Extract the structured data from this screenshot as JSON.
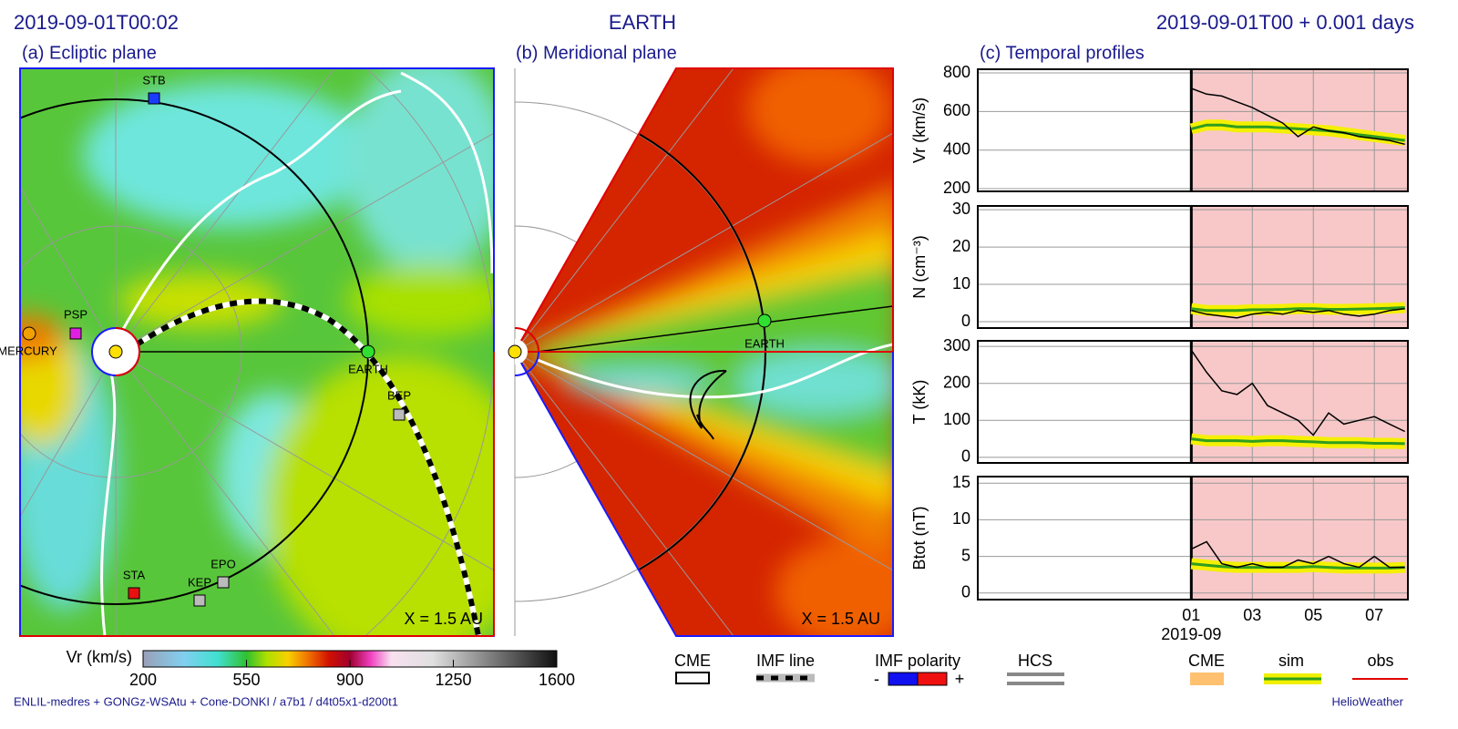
{
  "header": {
    "left": "2019-09-01T00:02",
    "center": "EARTH",
    "right": "2019-09-01T00 +  0.001 days"
  },
  "panels": {
    "a": {
      "title": "(a) Ecliptic plane",
      "scale_label": "X = 1.5 AU",
      "bodies": [
        "STB",
        "PSP",
        "MERCURY",
        "EARTH",
        "BEP",
        "STA",
        "KEP",
        "EPO"
      ]
    },
    "b": {
      "title": "(b) Meridional plane",
      "scale_label": "X = 1.5 AU",
      "bodies": [
        "EARTH"
      ]
    },
    "c": {
      "title": "(c) Temporal profiles"
    }
  },
  "colorbar": {
    "label": "Vr (km/s)",
    "lim": [
      200,
      1600
    ],
    "ticks": [
      200,
      550,
      900,
      1250,
      1600
    ]
  },
  "legend": {
    "items": [
      "CME",
      "IMF line",
      "IMF polarity",
      "HCS",
      "CME",
      "sim",
      "obs"
    ],
    "polarity_signs": [
      "-",
      "+"
    ]
  },
  "footer": {
    "left": "ENLIL-medres + GONGz-WSAtu + Cone-DONKI / a7b1 / d4t05x1-d200t1",
    "right": "HelioWeather"
  },
  "chart_data": [
    {
      "type": "line",
      "ylabel": "Vr (km/s)",
      "xlim": [
        -6,
        8.1
      ],
      "xticks": [
        1,
        3,
        5,
        7
      ],
      "observed_from": 1,
      "ylim": [
        186,
        819
      ],
      "yticks": [
        200,
        400,
        600,
        800
      ],
      "x": [
        1,
        1.5,
        2,
        2.5,
        3,
        3.5,
        4,
        4.5,
        5,
        5.5,
        6,
        6.5,
        7,
        7.5,
        8
      ],
      "series": [
        {
          "name": "sim",
          "color": "#2e9e1e",
          "values": [
            510,
            530,
            530,
            520,
            520,
            520,
            515,
            510,
            505,
            500,
            490,
            480,
            470,
            460,
            450
          ]
        },
        {
          "name": "obs",
          "color": "#000000",
          "values": [
            720,
            690,
            680,
            650,
            620,
            580,
            540,
            470,
            520,
            500,
            490,
            470,
            460,
            450,
            430
          ]
        }
      ]
    },
    {
      "type": "line",
      "ylabel": "N (cm⁻³)",
      "xlim": [
        -6,
        8.1
      ],
      "xticks": [
        1,
        3,
        5,
        7
      ],
      "observed_from": 1,
      "ylim": [
        -1.7,
        31
      ],
      "yticks": [
        0,
        10,
        20,
        30
      ],
      "x": [
        1,
        1.5,
        2,
        2.5,
        3,
        3.5,
        4,
        4.5,
        5,
        5.5,
        6,
        6.5,
        7,
        7.5,
        8
      ],
      "series": [
        {
          "name": "sim",
          "color": "#2e9e1e",
          "values": [
            3.5,
            3,
            3,
            3,
            3.2,
            3.2,
            3.3,
            3.5,
            3.5,
            3.3,
            3.3,
            3.4,
            3.5,
            3.6,
            3.8
          ]
        },
        {
          "name": "obs",
          "color": "#000000",
          "values": [
            3,
            2,
            1.5,
            1,
            2,
            2.5,
            2,
            3,
            2.5,
            3,
            2,
            1.5,
            2,
            3,
            3.5
          ]
        }
      ]
    },
    {
      "type": "line",
      "ylabel": "T  (kK)",
      "xlim": [
        -6,
        8.1
      ],
      "xticks": [
        1,
        3,
        5,
        7
      ],
      "observed_from": 1,
      "ylim": [
        -15,
        315
      ],
      "yticks": [
        0,
        100,
        200,
        300
      ],
      "x": [
        1,
        1.5,
        2,
        2.5,
        3,
        3.5,
        4,
        4.5,
        5,
        5.5,
        6,
        6.5,
        7,
        7.5,
        8
      ],
      "series": [
        {
          "name": "sim",
          "color": "#2e9e1e",
          "values": [
            50,
            45,
            45,
            45,
            43,
            45,
            45,
            43,
            42,
            40,
            40,
            40,
            38,
            38,
            37
          ]
        },
        {
          "name": "obs",
          "color": "#000000",
          "values": [
            290,
            230,
            180,
            170,
            200,
            140,
            120,
            100,
            60,
            120,
            90,
            100,
            110,
            90,
            70
          ]
        }
      ]
    },
    {
      "type": "line",
      "ylabel": "Btot (nT)",
      "xlim": [
        -6,
        8.1
      ],
      "observed_from": 1,
      "xticks": [
        {
          "value": 1,
          "label": "01"
        },
        {
          "value": 3,
          "label": "03"
        },
        {
          "value": 5,
          "label": "05"
        },
        {
          "value": 7,
          "label": "07"
        }
      ],
      "xlabel": "2019-09",
      "ylim": [
        -0.9,
        15.9
      ],
      "yticks": [
        0,
        5,
        10,
        15
      ],
      "x": [
        1,
        1.5,
        2,
        2.5,
        3,
        3.5,
        4,
        4.5,
        5,
        5.5,
        6,
        6.5,
        7,
        7.5,
        8
      ],
      "series": [
        {
          "name": "sim",
          "color": "#2e9e1e",
          "values": [
            4,
            3.8,
            3.6,
            3.5,
            3.5,
            3.5,
            3.5,
            3.5,
            3.6,
            3.5,
            3.4,
            3.4,
            3.4,
            3.4,
            3.5
          ]
        },
        {
          "name": "obs",
          "color": "#000000",
          "values": [
            6,
            7,
            4,
            3.5,
            4,
            3.5,
            3.5,
            4.5,
            4,
            5,
            4,
            3.5,
            5,
            3.5,
            3.5
          ]
        }
      ]
    }
  ]
}
